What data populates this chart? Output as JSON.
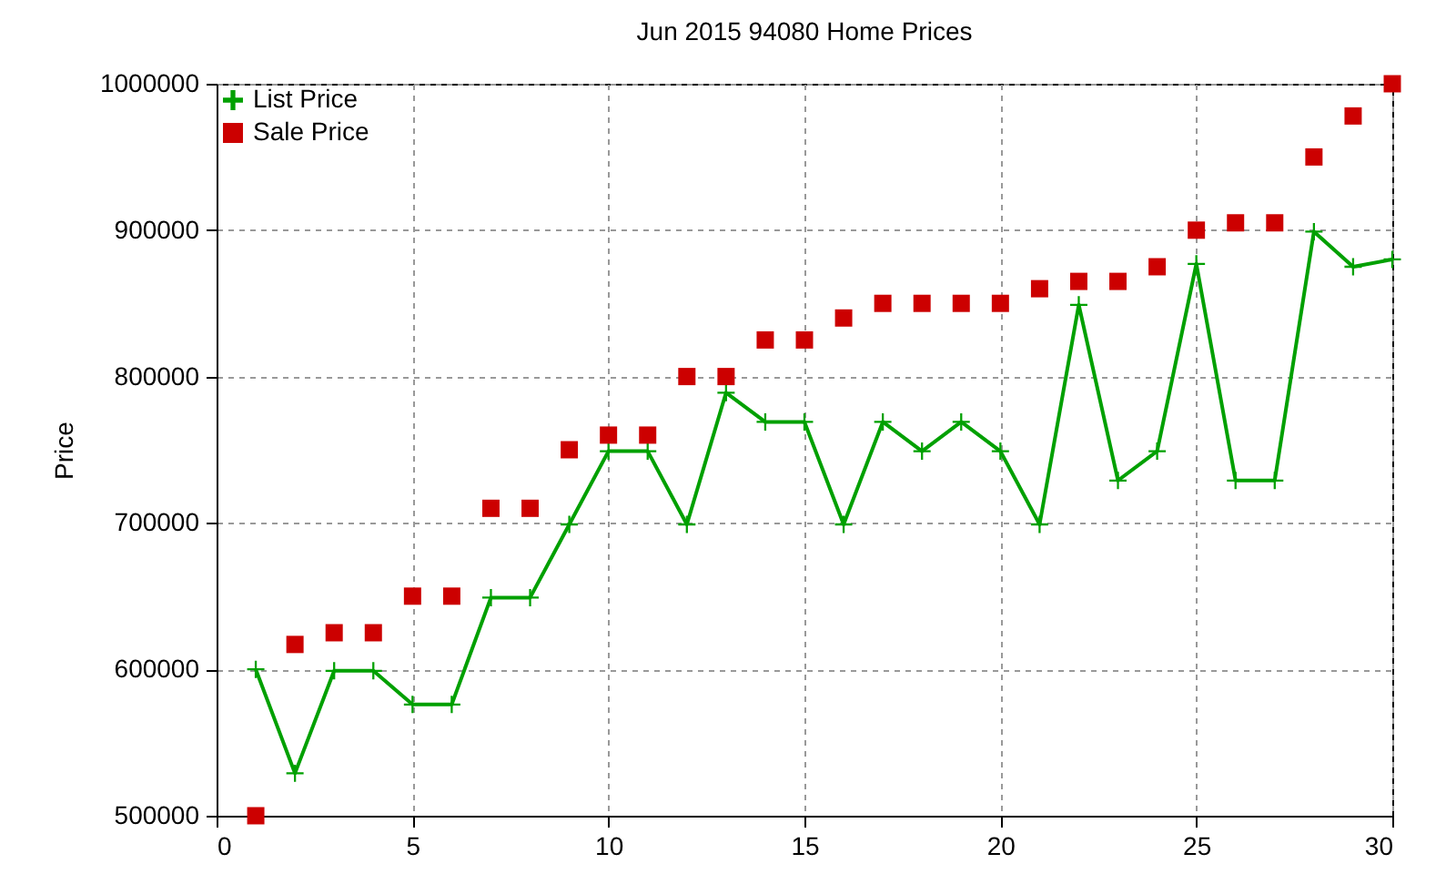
{
  "chart_data": {
    "type": "line",
    "title": "Jun 2015 94080 Home Prices",
    "ylabel": "Price",
    "x": [
      1,
      2,
      3,
      4,
      5,
      6,
      7,
      8,
      9,
      10,
      11,
      12,
      13,
      14,
      15,
      16,
      17,
      18,
      19,
      20,
      21,
      22,
      23,
      24,
      25,
      26,
      27,
      28,
      29,
      30
    ],
    "series": [
      {
        "name": "List Price",
        "type": "line",
        "marker": "cross",
        "color": "#00a000",
        "values": [
          600000,
          529000,
          599000,
          599000,
          576000,
          576000,
          649000,
          649000,
          699000,
          749000,
          749000,
          699000,
          789000,
          769000,
          769000,
          699000,
          769000,
          749000,
          769000,
          749000,
          699000,
          849000,
          729000,
          749000,
          877000,
          729000,
          729000,
          899000,
          875000,
          880000
        ]
      },
      {
        "name": "Sale Price",
        "type": "scatter",
        "marker": "square",
        "color": "#cc0000",
        "values": [
          500000,
          617000,
          625000,
          625000,
          650000,
          650000,
          710000,
          710000,
          750000,
          760000,
          760000,
          800000,
          800000,
          825000,
          825000,
          840000,
          850000,
          850000,
          850000,
          850000,
          860000,
          865000,
          865000,
          875000,
          900000,
          905000,
          905000,
          950000,
          978000,
          1000000
        ]
      }
    ],
    "xlim": [
      0,
      30
    ],
    "xticks": [
      0,
      5,
      10,
      15,
      20,
      25,
      30
    ],
    "ylim": [
      500000,
      1000000
    ],
    "yticks": [
      500000,
      600000,
      700000,
      800000,
      900000,
      1000000
    ],
    "grid": true,
    "legend": "top left"
  }
}
